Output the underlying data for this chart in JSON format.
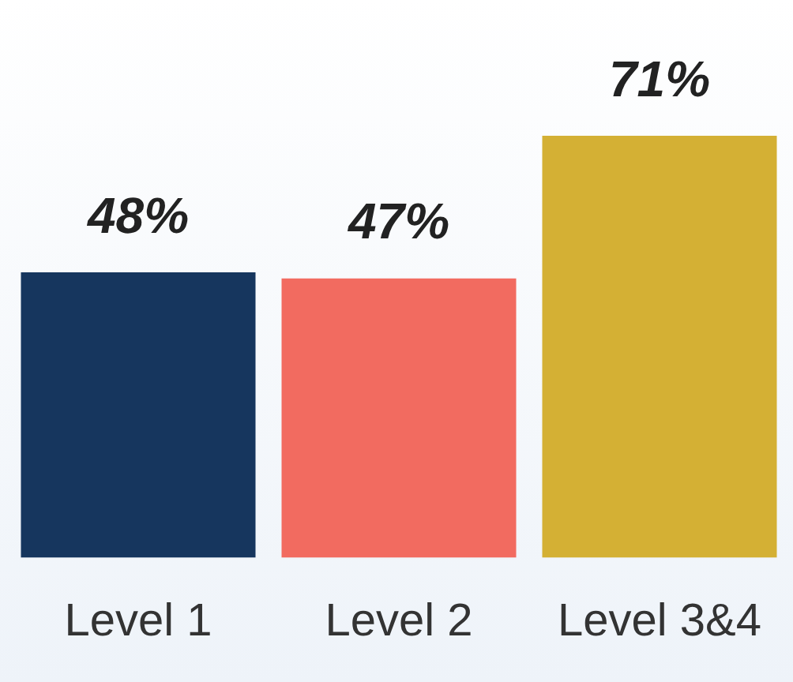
{
  "chart_data": {
    "type": "bar",
    "categories": [
      "Level 1",
      "Level 2",
      "Level 3&4"
    ],
    "values": [
      48,
      47,
      71
    ],
    "colors": [
      "#16365e",
      "#f26b60",
      "#d4b034"
    ],
    "value_labels": [
      "48%",
      "47%",
      "71%"
    ],
    "grid": false,
    "legend": false
  }
}
